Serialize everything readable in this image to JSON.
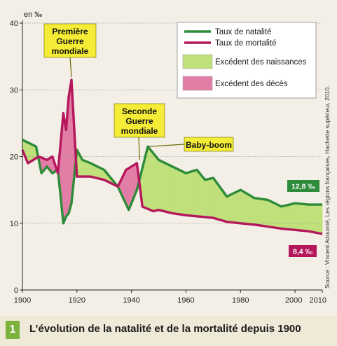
{
  "chart_data": {
    "type": "line",
    "y_unit_label": "en ‰",
    "ylim": [
      0,
      40
    ],
    "yticks": [
      0,
      10,
      20,
      30,
      40
    ],
    "xlim": [
      1900,
      2010
    ],
    "xticks": [
      1900,
      1920,
      1940,
      1960,
      1980,
      2000,
      2010
    ],
    "series": [
      {
        "name": "Taux de natalité",
        "color": "#2e8b3a",
        "points": [
          [
            1900,
            22.5
          ],
          [
            1905,
            21.5
          ],
          [
            1907,
            17.5
          ],
          [
            1909,
            18.5
          ],
          [
            1911,
            17.5
          ],
          [
            1913,
            18.0
          ],
          [
            1915,
            10.0
          ],
          [
            1916,
            11.0
          ],
          [
            1917,
            11.5
          ],
          [
            1918,
            13.0
          ],
          [
            1920,
            21.0
          ],
          [
            1922,
            19.5
          ],
          [
            1925,
            19.0
          ],
          [
            1930,
            18.0
          ],
          [
            1935,
            15.5
          ],
          [
            1939,
            12.0
          ],
          [
            1942,
            15.0
          ],
          [
            1946,
            21.5
          ],
          [
            1950,
            19.5
          ],
          [
            1955,
            18.5
          ],
          [
            1960,
            17.5
          ],
          [
            1964,
            18.0
          ],
          [
            1967,
            16.5
          ],
          [
            1970,
            16.8
          ],
          [
            1975,
            14.0
          ],
          [
            1980,
            15.0
          ],
          [
            1985,
            13.8
          ],
          [
            1990,
            13.5
          ],
          [
            1995,
            12.5
          ],
          [
            2000,
            13.0
          ],
          [
            2005,
            12.8
          ],
          [
            2010,
            12.8
          ]
        ]
      },
      {
        "name": "Taux de mortalité",
        "color": "#b5175c",
        "points": [
          [
            1900,
            21.0
          ],
          [
            1902,
            19.0
          ],
          [
            1906,
            20.0
          ],
          [
            1909,
            19.5
          ],
          [
            1911,
            20.0
          ],
          [
            1913,
            17.5
          ],
          [
            1915,
            26.5
          ],
          [
            1916,
            24.0
          ],
          [
            1917,
            29.0
          ],
          [
            1918,
            31.5
          ],
          [
            1920,
            17.0
          ],
          [
            1925,
            17.0
          ],
          [
            1930,
            16.5
          ],
          [
            1935,
            15.5
          ],
          [
            1938,
            18.0
          ],
          [
            1940,
            18.5
          ],
          [
            1942,
            19.0
          ],
          [
            1944,
            12.5
          ],
          [
            1948,
            11.8
          ],
          [
            1950,
            12.0
          ],
          [
            1955,
            11.5
          ],
          [
            1960,
            11.2
          ],
          [
            1965,
            11.0
          ],
          [
            1970,
            10.8
          ],
          [
            1975,
            10.2
          ],
          [
            1980,
            10.0
          ],
          [
            1985,
            9.8
          ],
          [
            1990,
            9.5
          ],
          [
            1995,
            9.2
          ],
          [
            2000,
            9.0
          ],
          [
            2005,
            8.8
          ],
          [
            2010,
            8.4
          ]
        ]
      }
    ],
    "legend": {
      "placement": "top-right",
      "items": [
        {
          "label": "Taux de natalité",
          "kind": "line",
          "color": "#2e8b3a"
        },
        {
          "label": "Taux de mortalité",
          "kind": "line",
          "color": "#b5175c"
        },
        {
          "label": "Excédent des naissances",
          "kind": "area",
          "color": "#bfe07a"
        },
        {
          "label": "Excédent des décès",
          "kind": "area",
          "color": "#e27ea6"
        }
      ]
    },
    "annotations": [
      {
        "lines": [
          "Première",
          "Guerre",
          "mondiale"
        ],
        "x": 1918
      },
      {
        "lines": [
          "Seconde",
          "Guerre",
          "mondiale"
        ],
        "x": 1943
      },
      {
        "lines": [
          "Baby-boom"
        ],
        "x": 1946
      }
    ],
    "end_labels": [
      {
        "text": "12,8 ‰",
        "color": "#2e8b3a"
      },
      {
        "text": "8,4 ‰",
        "color": "#b5175c"
      }
    ],
    "source": "Source : Vincent Adoumié, Les régions françaises, Hachette supérieur, 2010."
  },
  "caption": {
    "number": "1",
    "title": "L’évolution de la natalité et de la mortalité depuis 1900"
  },
  "colors": {
    "birth_line": "#2e8b3a",
    "death_line": "#b5175c",
    "birth_excess": "#bfe07a",
    "death_excess": "#e27ea6",
    "callout_bg": "#f4ec36",
    "badge_bg": "#7bb23b"
  }
}
